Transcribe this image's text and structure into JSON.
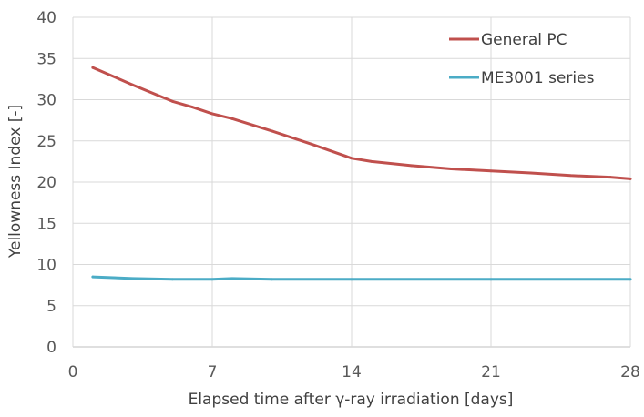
{
  "chart_data": {
    "type": "line",
    "title": "",
    "xlabel": "Elapsed time after γ-ray irradiation [days]",
    "ylabel": "Yellowness Index [-]",
    "xlim": [
      0,
      28
    ],
    "ylim": [
      0,
      40
    ],
    "x_ticks": [
      0,
      7,
      14,
      21,
      28
    ],
    "y_ticks": [
      0,
      5,
      10,
      15,
      20,
      25,
      30,
      35,
      40
    ],
    "x_tick_labels": [
      "0",
      "7",
      "14",
      "21",
      "28"
    ],
    "y_tick_labels": [
      "0",
      "5",
      "10",
      "15",
      "20",
      "25",
      "30",
      "35",
      "40"
    ],
    "grid": true,
    "legend_position": "top-right",
    "series": [
      {
        "name": "General PC",
        "color": "#c0504d",
        "x": [
          1,
          3,
          5,
          6,
          7,
          8,
          10,
          12,
          14,
          15,
          17,
          19,
          21,
          23,
          25,
          27,
          28
        ],
        "y": [
          33.9,
          31.8,
          29.8,
          29.1,
          28.3,
          27.7,
          26.2,
          24.6,
          22.9,
          22.5,
          22.0,
          21.6,
          21.35,
          21.1,
          20.8,
          20.6,
          20.4
        ]
      },
      {
        "name": "ME3001 series",
        "color": "#4bacc6",
        "x": [
          1,
          3,
          5,
          7,
          8,
          10,
          14,
          21,
          28
        ],
        "y": [
          8.5,
          8.3,
          8.2,
          8.2,
          8.3,
          8.2,
          8.2,
          8.2,
          8.2
        ]
      }
    ]
  }
}
